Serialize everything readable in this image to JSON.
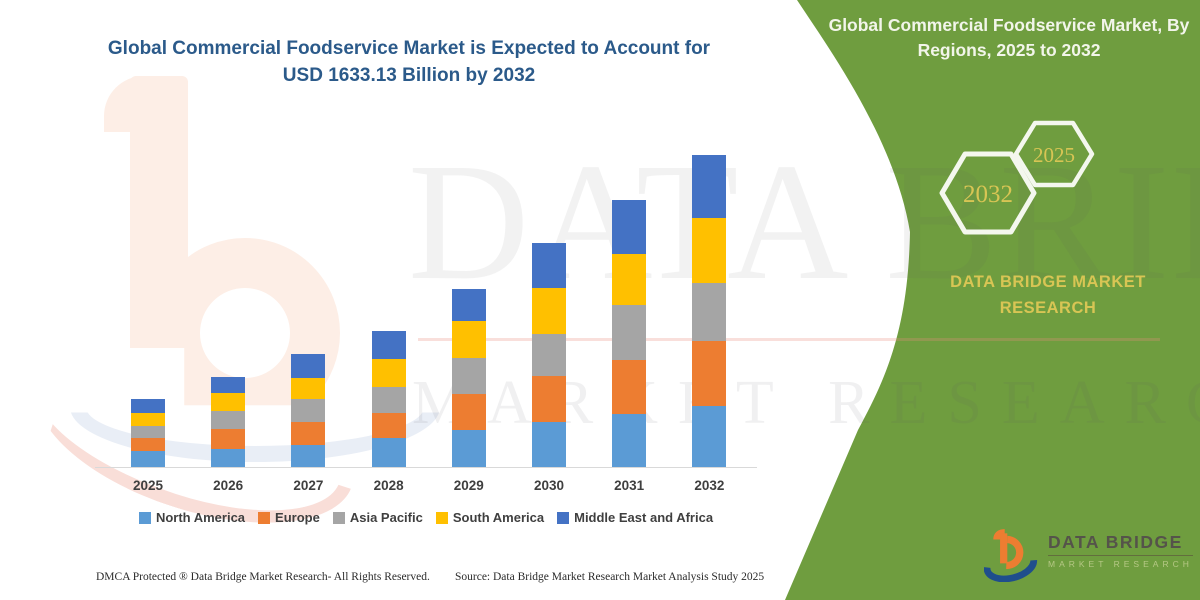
{
  "header": {
    "left_title": "Global Commercial Foodservice Market is Expected to Account for USD 1633.13 Billion by 2032",
    "right_title": "Global Commercial Foodservice Market, By Regions, 2025 to 2032"
  },
  "side_panel": {
    "hexagons": [
      {
        "label": "2032"
      },
      {
        "label": "2025"
      }
    ],
    "brand_text": "DATA BRIDGE MARKET RESEARCH"
  },
  "chart_data": {
    "type": "bar",
    "stacked": true,
    "title": "Global Commercial Foodservice Market, By Regions, 2025 to 2032",
    "unit": "USD Billion",
    "categories": [
      "2025",
      "2026",
      "2027",
      "2028",
      "2029",
      "2030",
      "2031",
      "2032"
    ],
    "series": [
      {
        "name": "North America",
        "color": "#5B9BD5",
        "values": [
          82,
          94,
          117,
          154,
          192,
          236,
          279,
          319.5
        ]
      },
      {
        "name": "Europe",
        "color": "#ED7D31",
        "values": [
          70,
          105,
          118,
          129,
          188,
          239,
          280,
          340.2
        ]
      },
      {
        "name": "Asia Pacific",
        "color": "#A5A5A5",
        "values": [
          64,
          92,
          119,
          136,
          192,
          220,
          288,
          305.3
        ]
      },
      {
        "name": "South America",
        "color": "#FFC000",
        "values": [
          66,
          99,
          114,
          149,
          190,
          242,
          270,
          336.5
        ]
      },
      {
        "name": "Middle East and Africa",
        "color": "#4472C4",
        "values": [
          73,
          81,
          126,
          143,
          171,
          236,
          280,
          331.63
        ]
      }
    ],
    "total_2032": 1633.13,
    "ylim": [
      0,
      1700
    ],
    "grid": false,
    "legend_position": "bottom",
    "values_estimated_from_pixels": true
  },
  "watermark": {
    "line1": "DATA BRIDGE",
    "line2": "MARKET RESEARCH"
  },
  "footer": {
    "dmca": "DMCA Protected ® Data Bridge Market Research-  All Rights Reserved.",
    "source": "Source: Data Bridge Market Research  Market Analysis Study 2025"
  },
  "logo": {
    "name": "DATA BRIDGE",
    "sub": "MARKET RESEARCH"
  },
  "colors": {
    "panel_green": "#6f9d3f",
    "title_blue": "#2b5a8a",
    "accent_yellow": "#d8c554",
    "axis_text": "#3f3f3f",
    "north_america": "#5B9BD5",
    "europe": "#ED7D31",
    "asia_pacific": "#A5A5A5",
    "south_america": "#FFC000",
    "middle_east_africa": "#4472C4"
  }
}
